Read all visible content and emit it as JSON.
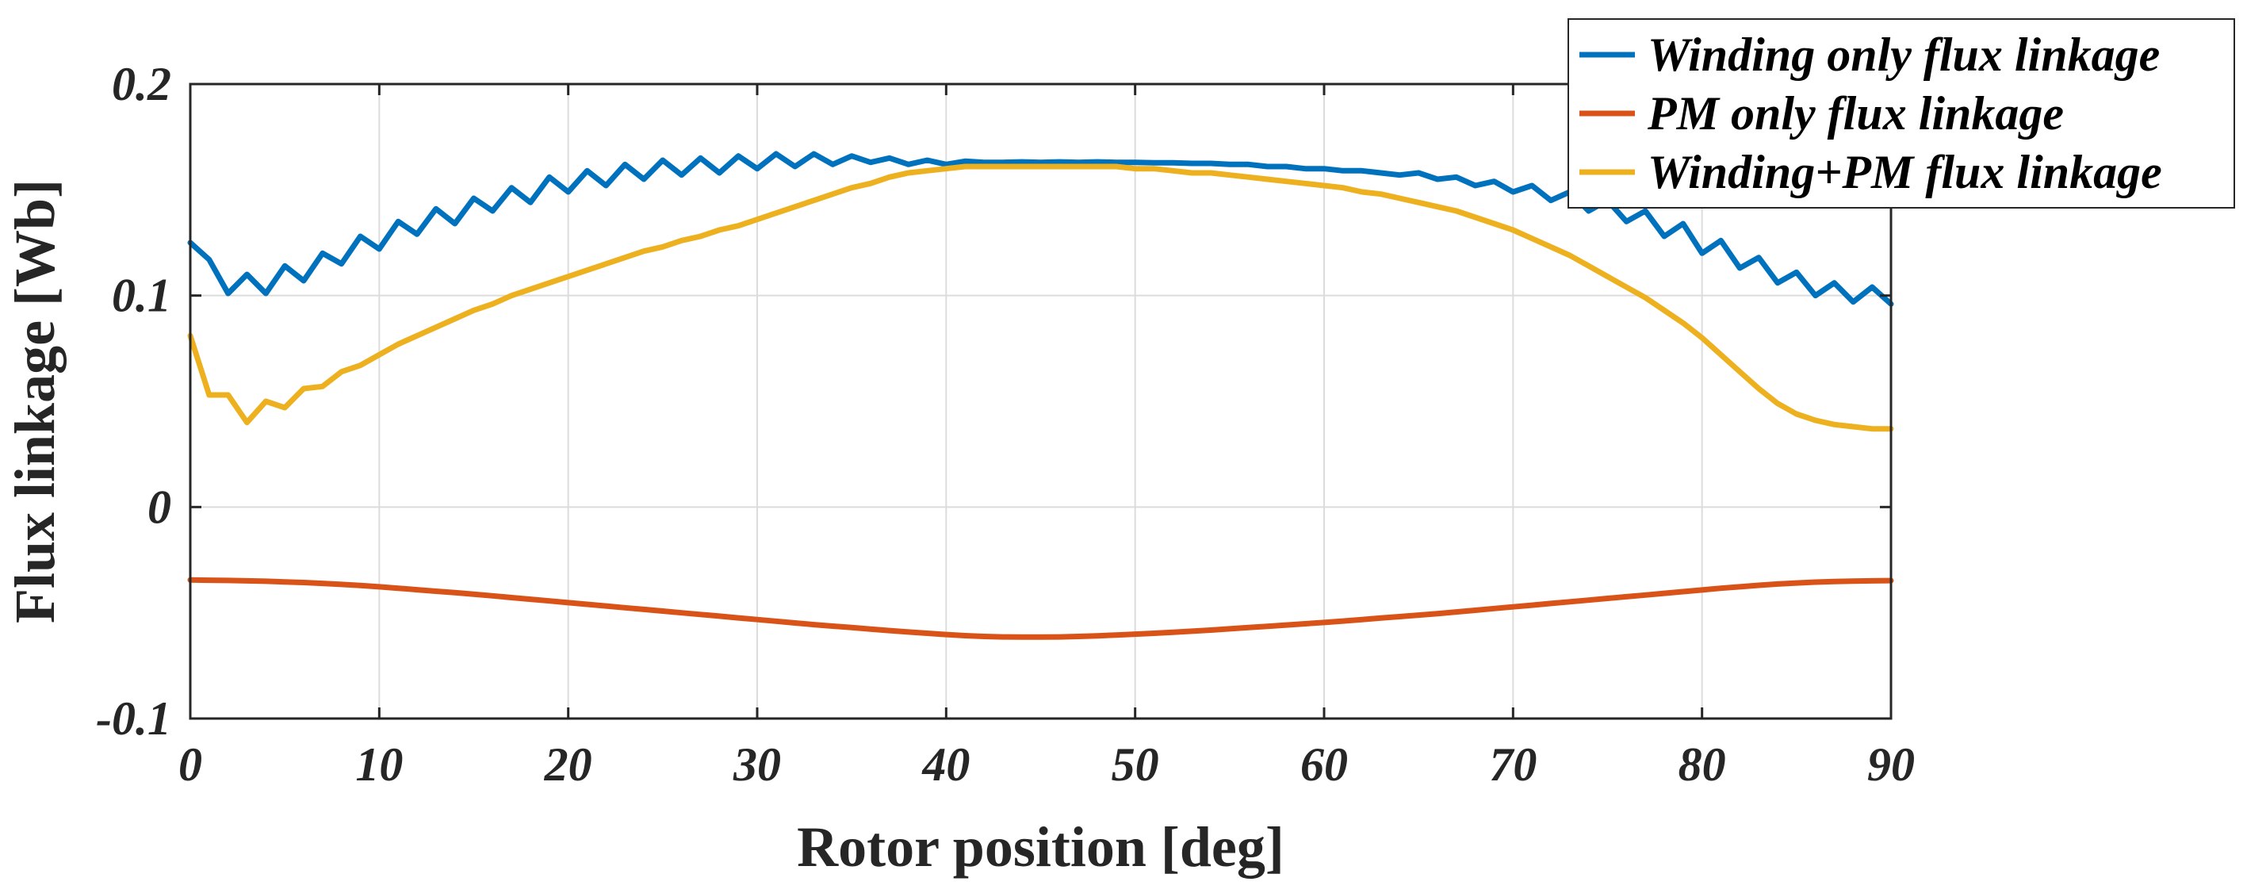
{
  "chart_data": {
    "type": "line",
    "title": "",
    "xlabel": "Rotor position [deg]",
    "ylabel": "Flux linkage [Wb]",
    "xlim": [
      0,
      90
    ],
    "ylim": [
      -0.1,
      0.2
    ],
    "grid": true,
    "legend_position": "top-right",
    "x_ticks": [
      0,
      10,
      20,
      30,
      40,
      50,
      60,
      70,
      80,
      90
    ],
    "x_tick_labels": [
      "0",
      "10",
      "20",
      "30",
      "40",
      "50",
      "60",
      "70",
      "80",
      "90"
    ],
    "y_ticks": [
      -0.1,
      0,
      0.1,
      0.2
    ],
    "y_tick_labels": [
      "-0.1",
      "0",
      "0.1",
      "0.2"
    ],
    "x": [
      0,
      1,
      2,
      3,
      4,
      5,
      6,
      7,
      8,
      9,
      10,
      11,
      12,
      13,
      14,
      15,
      16,
      17,
      18,
      19,
      20,
      21,
      22,
      23,
      24,
      25,
      26,
      27,
      28,
      29,
      30,
      31,
      32,
      33,
      34,
      35,
      36,
      37,
      38,
      39,
      40,
      41,
      42,
      43,
      44,
      45,
      46,
      47,
      48,
      49,
      50,
      51,
      52,
      53,
      54,
      55,
      56,
      57,
      58,
      59,
      60,
      61,
      62,
      63,
      64,
      65,
      66,
      67,
      68,
      69,
      70,
      71,
      72,
      73,
      74,
      75,
      76,
      77,
      78,
      79,
      80,
      81,
      82,
      83,
      84,
      85,
      86,
      87,
      88,
      89,
      90
    ],
    "series": [
      {
        "name": "Winding only flux linkage",
        "color": "#0072BD",
        "values": [
          0.125,
          0.117,
          0.101,
          0.11,
          0.101,
          0.114,
          0.107,
          0.12,
          0.115,
          0.128,
          0.122,
          0.135,
          0.129,
          0.141,
          0.134,
          0.146,
          0.14,
          0.151,
          0.144,
          0.156,
          0.149,
          0.159,
          0.152,
          0.162,
          0.155,
          0.164,
          0.157,
          0.165,
          0.158,
          0.166,
          0.16,
          0.167,
          0.161,
          0.167,
          0.162,
          0.166,
          0.163,
          0.165,
          0.162,
          0.164,
          0.162,
          0.1635,
          0.163,
          0.163,
          0.1632,
          0.163,
          0.1632,
          0.163,
          0.1632,
          0.163,
          0.163,
          0.1628,
          0.1628,
          0.1625,
          0.1625,
          0.162,
          0.162,
          0.161,
          0.161,
          0.16,
          0.16,
          0.159,
          0.159,
          0.158,
          0.157,
          0.158,
          0.155,
          0.156,
          0.152,
          0.154,
          0.149,
          0.152,
          0.145,
          0.149,
          0.14,
          0.145,
          0.135,
          0.14,
          0.128,
          0.134,
          0.12,
          0.126,
          0.113,
          0.118,
          0.106,
          0.111,
          0.1,
          0.106,
          0.097,
          0.104,
          0.096
        ]
      },
      {
        "name": "PM only flux linkage",
        "color": "#D95319",
        "values": [
          -0.0345,
          -0.0346,
          -0.0347,
          -0.0349,
          -0.0351,
          -0.0354,
          -0.0357,
          -0.0361,
          -0.0366,
          -0.0371,
          -0.0377,
          -0.0384,
          -0.0391,
          -0.0398,
          -0.0405,
          -0.0412,
          -0.042,
          -0.0428,
          -0.0436,
          -0.0444,
          -0.0452,
          -0.046,
          -0.0468,
          -0.0476,
          -0.0484,
          -0.0492,
          -0.05,
          -0.0508,
          -0.0516,
          -0.0524,
          -0.0532,
          -0.054,
          -0.0548,
          -0.0556,
          -0.0563,
          -0.057,
          -0.0577,
          -0.0584,
          -0.0591,
          -0.0597,
          -0.0603,
          -0.0608,
          -0.0612,
          -0.0614,
          -0.0615,
          -0.0615,
          -0.0614,
          -0.0612,
          -0.0609,
          -0.0605,
          -0.0601,
          -0.0597,
          -0.0592,
          -0.0587,
          -0.0582,
          -0.0576,
          -0.057,
          -0.0564,
          -0.0558,
          -0.0552,
          -0.0546,
          -0.0539,
          -0.0532,
          -0.0525,
          -0.0518,
          -0.0511,
          -0.0504,
          -0.0496,
          -0.0488,
          -0.048,
          -0.0472,
          -0.0464,
          -0.0456,
          -0.0448,
          -0.044,
          -0.0432,
          -0.0424,
          -0.0416,
          -0.0408,
          -0.04,
          -0.0392,
          -0.0384,
          -0.0377,
          -0.037,
          -0.0364,
          -0.0359,
          -0.0355,
          -0.0352,
          -0.035,
          -0.0349,
          -0.0348
        ]
      },
      {
        "name": "Winding+PM flux linkage",
        "color": "#EDB120",
        "values": [
          0.081,
          0.053,
          0.053,
          0.04,
          0.05,
          0.047,
          0.056,
          0.057,
          0.064,
          0.067,
          0.072,
          0.077,
          0.081,
          0.085,
          0.089,
          0.093,
          0.096,
          0.1,
          0.103,
          0.106,
          0.109,
          0.112,
          0.115,
          0.118,
          0.121,
          0.123,
          0.126,
          0.128,
          0.131,
          0.133,
          0.136,
          0.139,
          0.142,
          0.145,
          0.148,
          0.151,
          0.153,
          0.156,
          0.158,
          0.159,
          0.16,
          0.161,
          0.161,
          0.161,
          0.161,
          0.161,
          0.161,
          0.161,
          0.161,
          0.161,
          0.16,
          0.16,
          0.159,
          0.158,
          0.158,
          0.157,
          0.156,
          0.155,
          0.154,
          0.153,
          0.152,
          0.151,
          0.149,
          0.148,
          0.146,
          0.144,
          0.142,
          0.14,
          0.137,
          0.134,
          0.131,
          0.127,
          0.123,
          0.119,
          0.114,
          0.109,
          0.104,
          0.099,
          0.093,
          0.087,
          0.08,
          0.072,
          0.064,
          0.056,
          0.049,
          0.044,
          0.041,
          0.039,
          0.038,
          0.037,
          0.037
        ]
      }
    ]
  }
}
